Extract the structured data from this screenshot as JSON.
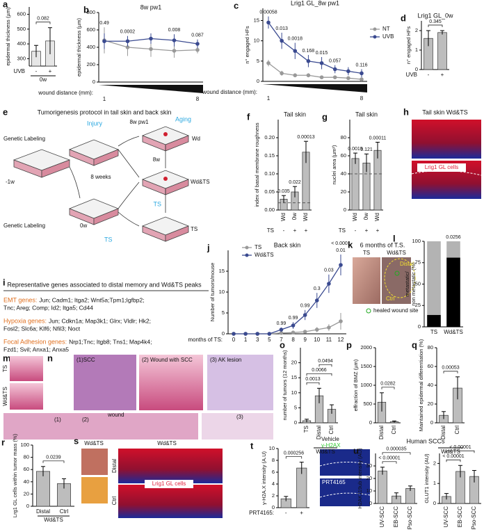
{
  "figure": {
    "e": {
      "letter": "e",
      "title": "Tumorigenesis protocol in tail skin and back skin",
      "injury": "Injury",
      "aging": "Aging",
      "labeling_top": "Genetic Labeling",
      "labeling_bottom": "Genetic Labeling",
      "pw": "8w pw1",
      "weeks": "8 weeks",
      "w8": "8w",
      "wd": "Wd",
      "wdts": "Wd&TS",
      "ts": "TS",
      "ts_arrow": "TS",
      "ts_bottom": "TS",
      "minus1w": "-1w",
      "zero_w": "0w"
    },
    "h": {
      "letter": "h",
      "title": "Tail skin Wd&TS",
      "label": "Lrig1 GL cells"
    },
    "i": {
      "letter": "i",
      "title": "Representative genes associated to distal memory and Wd&TS peaks",
      "groups": [
        {
          "name": "EMT genes:",
          "lines": [
            "Jun; Cadm1; Itga2; Wnt5a;Tpm1;Igfbp2;",
            "Tnc; Areg; Comp; Id2; Itga5; Cd44"
          ]
        },
        {
          "name": "Hypoxia genes:",
          "lines": [
            "Jun; Cdkn1a; Map3k1; Glrx; Vldlr; Hk2;",
            "Fosl2; Slc6a; Klf6; Nfil3; Noct"
          ]
        },
        {
          "name": "Focal Adhesion genes:",
          "lines": [
            "Nrp1;Tnc; Itgb8; Tns1; Map4k4;",
            "Fzd1; Svil; Anxa1; Anxa5"
          ]
        }
      ]
    },
    "k": {
      "letter": "k",
      "title": "6 months of T.S.",
      "left": "TS",
      "right": "Wd&TS",
      "distal": "Distal",
      "ctrl": "Ctrl",
      "legend": "healed wound site"
    },
    "m": {
      "letter": "m",
      "top": "TS",
      "bottom": "Wd&TS"
    },
    "n": {
      "letter": "n",
      "scc": "(1)SCC",
      "wound_scc": "(2) Wound with SCC",
      "ak": "(3) AK lesion",
      "wound": "wound",
      "r1": "(1)",
      "r2": "(2)",
      "r3": "(3)"
    },
    "s": {
      "letter": "s",
      "left_title": "Wd&TS",
      "right_title": "Wd&TS",
      "distal": "Distal",
      "ctrl": "Ctrl",
      "label": "Lrig1 GL cells"
    },
    "t_images": {
      "vehicle": "Vehicle",
      "stain": "γ-H2AX",
      "drug": "PRT4165"
    },
    "u": {
      "title": "Human SCCs"
    }
  },
  "chart_data": [
    {
      "letter": "a",
      "type": "bar",
      "ylabel": "epidermal thickness (µm)",
      "categories": [
        "-",
        "+"
      ],
      "category_label": "UVB",
      "group": "0w",
      "values": [
        350,
        420
      ],
      "errors": [
        40,
        90
      ],
      "color": "#e6e6e6",
      "ylim": [
        250,
        650
      ],
      "yticks": [
        300,
        400,
        500,
        600
      ],
      "annotations": [
        {
          "text": "0.082",
          "from": 0,
          "to": 1
        }
      ]
    },
    {
      "letter": "b",
      "type": "line",
      "title": "8w pw1",
      "ylabel": "epidermal thickness (µm)",
      "categories": [
        "1",
        null,
        null,
        null,
        "8"
      ],
      "x_label": "wound distance (mm):",
      "wedge": true,
      "ylim": [
        0,
        800
      ],
      "yticks": [
        0,
        200,
        400,
        600,
        800
      ],
      "series": [
        {
          "name": "NT",
          "color": "#999999",
          "values": [
            480,
            400,
            380,
            360,
            370
          ],
          "errors": [
            150,
            100,
            90,
            80,
            40
          ]
        },
        {
          "name": "UVB",
          "color": "#3a4a90",
          "values": [
            470,
            470,
            500,
            480,
            440
          ],
          "errors": [
            90,
            60,
            60,
            70,
            50
          ]
        }
      ],
      "annotations": [
        {
          "text": "0.49",
          "at": 0
        },
        {
          "text": "0.0002",
          "at": 1
        },
        {
          "text": "0.008",
          "at": 3
        },
        {
          "text": "0.087",
          "at": 4
        }
      ]
    },
    {
      "letter": "c",
      "type": "line",
      "title": "Lrig1 GL_8w pw1",
      "ylabel": "n° engaged HFs",
      "categories": [
        "1",
        null,
        null,
        null,
        null,
        null,
        null,
        "8"
      ],
      "x_label": "wound distance (mm):",
      "wedge": true,
      "legend": "right",
      "ylim": [
        0,
        18
      ],
      "yticks": [
        0,
        5,
        10,
        15
      ],
      "series": [
        {
          "name": "NT",
          "color": "#999999",
          "values": [
            4.5,
            2,
            1.5,
            1.5,
            1,
            1,
            0.8,
            0.5
          ],
          "errors": [
            0.8,
            0.6,
            0.5,
            0.5,
            0.4,
            0.4,
            0.3,
            0.3
          ]
        },
        {
          "name": "UVB",
          "color": "#3a4a90",
          "values": [
            14.5,
            10,
            7.5,
            5,
            4.5,
            3,
            2.5,
            2
          ],
          "errors": [
            1.5,
            2,
            2,
            1.5,
            1.5,
            1,
            1,
            1
          ]
        }
      ],
      "annotations": [
        {
          "text": "0.00058",
          "at": 0
        },
        {
          "text": "0.013",
          "at": 1
        },
        {
          "text": "0.0018",
          "at": 2
        },
        {
          "text": "0.168",
          "at": 3
        },
        {
          "text": "0.015",
          "at": 4
        },
        {
          "text": "0.057",
          "at": 5
        },
        {
          "text": "0.116",
          "at": 7
        }
      ]
    },
    {
      "letter": "d",
      "type": "bar",
      "title": "Lrig1 GL_0w",
      "ylabel": "n° engaged HFs",
      "categories": [
        "-",
        "+"
      ],
      "category_label": "UVB",
      "values": [
        1.6,
        1.9
      ],
      "errors": [
        0.4,
        0.1
      ],
      "color": "#bdbdbd",
      "ylim": [
        0,
        2.5
      ],
      "yticks": [
        0,
        1,
        2
      ],
      "annotations": [
        {
          "text": "0.345",
          "from": 0,
          "to": 1
        }
      ]
    },
    {
      "letter": "f",
      "type": "bar",
      "title": "Tail skin",
      "ylabel": "index of basal membrane roughness",
      "categories": [
        "Wd",
        "0w",
        "Wd"
      ],
      "condition": {
        "label": "TS",
        "values": [
          "-",
          "+",
          "+"
        ]
      },
      "values": [
        0.03,
        0.05,
        0.16
      ],
      "errors": [
        0.01,
        0.015,
        0.03
      ],
      "color": "#bdbdbd",
      "ylim": [
        0,
        0.25
      ],
      "reference_line": 0.02,
      "yticks": [
        {
          "value": 0,
          "label": "0.00"
        },
        0.05,
        {
          "value": 0.1,
          "label": "0.10"
        },
        0.15,
        {
          "value": 0.2,
          "label": "0.20"
        }
      ],
      "annotations": [
        {
          "text": "0.035",
          "at": 0
        },
        {
          "text": "0.022",
          "at": 1
        },
        {
          "text": "0.00013",
          "at": 2
        }
      ]
    },
    {
      "letter": "g",
      "type": "bar",
      "title": "Tail skin",
      "ylabel": "nuclei area (µm²)",
      "categories": [
        "Wd",
        "0w",
        "Wd"
      ],
      "condition": {
        "label": "TS",
        "values": [
          "-",
          "+",
          "+"
        ]
      },
      "values": [
        57,
        52,
        66
      ],
      "errors": [
        6,
        10,
        9
      ],
      "color": "#bdbdbd",
      "ylim": [
        0,
        100
      ],
      "reference_line": 40,
      "yticks": [
        0,
        20,
        40,
        60,
        80
      ],
      "annotations": [
        {
          "text": "0.0019",
          "at": 0
        },
        {
          "text": "0.121",
          "at": 1
        },
        {
          "text": "0.00011",
          "at": 2
        }
      ]
    },
    {
      "letter": "j",
      "type": "line",
      "title": "Back skin",
      "ylabel": "Number of tumors/mouse",
      "categories": [
        "0",
        "1",
        "3",
        "5",
        "7",
        "8",
        "9",
        "10",
        "11",
        "12"
      ],
      "x_label": "months of TS:",
      "legend": "left",
      "ylim": [
        0,
        20
      ],
      "yticks": [
        0,
        5,
        10,
        15
      ],
      "series": [
        {
          "name": "TS",
          "color": "#999999",
          "values": [
            0,
            0,
            0,
            0,
            0.2,
            0.3,
            0.5,
            1,
            1.5,
            3
          ],
          "errors": [
            0,
            0,
            0,
            0,
            0.2,
            0.3,
            0.4,
            0.6,
            0.8,
            2
          ]
        },
        {
          "name": "Wd&TS",
          "color": "#3a4a90",
          "values": [
            0,
            0,
            0,
            0,
            1,
            2,
            4.5,
            8,
            12,
            16.5
          ],
          "errors": [
            0,
            0,
            0,
            0,
            0.5,
            0.8,
            1.2,
            1.8,
            2.2,
            2.5
          ]
        }
      ],
      "annotations": [
        {
          "text": "0.99",
          "at": 4
        },
        {
          "text": "0.99",
          "at": 5
        },
        {
          "text": "0.99",
          "at": 6
        },
        {
          "text": "0.3",
          "at": 7
        },
        {
          "text": "0.03",
          "at": 8
        },
        {
          "text": "0.01",
          "at": 9
        },
        {
          "text": "< 0.0001",
          "at": 9
        }
      ]
    },
    {
      "letter": "l",
      "type": "stacked_bar",
      "categories": [
        "TS",
        "Wd&TS"
      ],
      "ylim": [
        0,
        100
      ],
      "yticks": [
        0,
        25,
        50,
        75,
        100
      ],
      "series": [
        {
          "name": "metastatic/",
          "color": "#000000",
          "values": [
            14,
            81
          ]
        },
        {
          "name": "non metastatic (%)",
          "color": "#b3b3b3",
          "values": [
            86,
            19
          ]
        }
      ],
      "annotations": [
        {
          "text": "0.0256",
          "at": 1
        }
      ]
    },
    {
      "letter": "o",
      "type": "bar",
      "ylabel": "number of tumors (12 months)",
      "categories": [
        "TS",
        "Distal",
        "Ctrl"
      ],
      "group": "Wd&TS",
      "values": [
        0.7,
        9,
        4.5
      ],
      "errors": [
        0.5,
        2.5,
        1.5
      ],
      "color": "#bdbdbd",
      "ylim": [
        0,
        25
      ],
      "yticks": [
        0,
        5,
        10,
        15,
        20
      ],
      "annotations": [
        {
          "text": "0.0013",
          "from": 0,
          "to": 1
        },
        {
          "text": "0.0066",
          "from": 0,
          "to": 2
        },
        {
          "text": "0.0494",
          "from": 1,
          "to": 2
        }
      ]
    },
    {
      "letter": "p",
      "type": "bar",
      "ylabel": "effraction of BMZ (µm)",
      "categories": [
        "Distal",
        "Ctrl"
      ],
      "values": [
        550,
        30
      ],
      "errors": [
        250,
        20
      ],
      "color": "#bdbdbd",
      "ylim": [
        0,
        2000
      ],
      "yticks": [
        0,
        500,
        1000,
        1500,
        2000
      ],
      "annotations": [
        {
          "text": "0.0282",
          "from": 0,
          "to": 1
        }
      ]
    },
    {
      "letter": "q",
      "type": "bar",
      "ylabel": "Maintained epidermal differentiation (%)",
      "categories": [
        "Distal",
        "Ctrl"
      ],
      "group": "Wd&TS",
      "values": [
        8,
        37
      ],
      "errors": [
        4,
        12
      ],
      "color": "#bdbdbd",
      "ylim": [
        0,
        80
      ],
      "yticks": [
        0,
        20,
        40,
        60,
        80
      ],
      "annotations": [
        {
          "text": "0.00053",
          "from": 0,
          "to": 1
        }
      ]
    },
    {
      "letter": "r",
      "type": "bar",
      "ylabel": "Lrg1 GL cells within tumor mass (%)",
      "categories": [
        "Distal",
        "Ctrl"
      ],
      "group": "Wd&TS",
      "values": [
        57,
        37
      ],
      "errors": [
        8,
        8
      ],
      "color": "#bdbdbd",
      "ylim": [
        0,
        100
      ],
      "yticks": [
        0,
        20,
        40,
        60,
        80,
        100
      ],
      "annotations": [
        {
          "text": "0.0239",
          "from": 0,
          "to": 1
        }
      ]
    },
    {
      "letter": "t",
      "type": "bar",
      "ylabel": "γ-H2A.X intensity (A.U)",
      "categories": [
        "-",
        "+"
      ],
      "category_label": "PRT4165:",
      "values": [
        1.5,
        6.7
      ],
      "errors": [
        0.4,
        1
      ],
      "color": "#bdbdbd",
      "ylim": [
        0,
        10
      ],
      "yticks": [
        0,
        2,
        4,
        6,
        8,
        10
      ],
      "annotations": [
        {
          "text": "0.000256",
          "from": 0,
          "to": 1
        }
      ]
    },
    {
      "letter": "u",
      "type": "bar",
      "ylabel": "H2AK119ub intensity (AU)",
      "categories": [
        "UV-SCC",
        "EB-SCC",
        "Pso-SCC"
      ],
      "values": [
        26,
        6,
        12
      ],
      "errors": [
        3,
        2.5,
        2
      ],
      "color": "#bdbdbd",
      "ylim": [
        0,
        40
      ],
      "yticks": [
        0,
        10,
        20,
        30
      ],
      "annotations": [
        {
          "text": "< 0.00001",
          "from": 0,
          "to": 1
        },
        {
          "text": "0.000035",
          "from": 0,
          "to": 2
        }
      ]
    },
    {
      "type": "bar",
      "ylabel": "GLUT1 intensity (AU)",
      "categories": [
        "UV-SCC",
        "EB-SCC",
        "Pso-SCC"
      ],
      "values": [
        0.35,
        1.6,
        1.35
      ],
      "errors": [
        0.15,
        0.3,
        0.3
      ],
      "color": "#bdbdbd",
      "ylim": [
        0,
        2.5
      ],
      "yticks": [
        0,
        1,
        2
      ],
      "annotations": [
        {
          "text": "< 0.00001",
          "from": 0,
          "to": 1
        },
        {
          "text": "< 0.00001",
          "from": 0,
          "to": 2
        }
      ]
    }
  ]
}
